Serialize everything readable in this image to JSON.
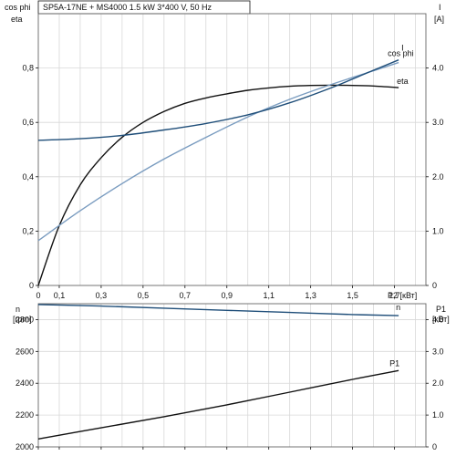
{
  "title": "SP5A-17NE + MS4000   1.5 kW   3*400 V, 50 Hz",
  "colors": {
    "black": "#111111",
    "dark_blue": "#1f4e79",
    "light_blue": "#7a9cc0",
    "grid": "#d8d8d8",
    "frame": "#666666"
  },
  "chart_data": [
    {
      "type": "line",
      "panel": "top",
      "title": "SP5A-17NE + MS4000   1.5 kW   3*400 V, 50 Hz",
      "left_axis": {
        "label_lines": [
          "cos phi",
          "eta"
        ],
        "ylim": [
          0,
          1.0
        ],
        "ticks": [
          0,
          0.2,
          0.4,
          0.6,
          0.8
        ]
      },
      "right_axis": {
        "label_lines": [
          "I",
          "[A]"
        ],
        "ylim": [
          0,
          5.0
        ],
        "ticks": [
          0,
          1.0,
          2.0,
          3.0,
          4.0
        ]
      },
      "x_axis": {
        "label": "P2 [кВт]",
        "xlim": [
          0,
          1.85
        ],
        "ticks": [
          0,
          0.1,
          0.3,
          0.5,
          0.7,
          0.9,
          1.1,
          1.3,
          1.5,
          1.7
        ],
        "tick_labels": [
          "0",
          "0,1",
          "0,3",
          "0,5",
          "0,7",
          "0,9",
          "1,1",
          "1,3",
          "1,5",
          "1,7"
        ]
      },
      "series": [
        {
          "name": "eta",
          "axis": "left",
          "color": "#111111",
          "x": [
            0,
            0.1,
            0.2,
            0.3,
            0.4,
            0.5,
            0.6,
            0.7,
            0.8,
            0.9,
            1.0,
            1.1,
            1.2,
            1.3,
            1.4,
            1.5,
            1.6,
            1.72
          ],
          "y": [
            0,
            0.22,
            0.37,
            0.47,
            0.545,
            0.6,
            0.64,
            0.67,
            0.69,
            0.705,
            0.718,
            0.727,
            0.733,
            0.736,
            0.737,
            0.736,
            0.734,
            0.728
          ]
        },
        {
          "name": "cos phi",
          "axis": "left",
          "color": "#7a9cc0",
          "x": [
            0,
            0.2,
            0.4,
            0.6,
            0.8,
            1.0,
            1.2,
            1.4,
            1.6,
            1.72
          ],
          "y": [
            0.165,
            0.275,
            0.375,
            0.465,
            0.545,
            0.62,
            0.685,
            0.74,
            0.79,
            0.82
          ]
        },
        {
          "name": "I",
          "axis": "right",
          "color": "#1f4e79",
          "x": [
            0,
            0.2,
            0.4,
            0.6,
            0.8,
            1.0,
            1.2,
            1.4,
            1.6,
            1.72
          ],
          "y": [
            2.67,
            2.7,
            2.76,
            2.86,
            2.98,
            3.14,
            3.36,
            3.64,
            3.96,
            4.15
          ]
        }
      ]
    },
    {
      "type": "line",
      "panel": "bottom",
      "left_axis": {
        "label_lines": [
          "n",
          "[rpm]"
        ],
        "ylim": [
          2000,
          2900
        ],
        "ticks": [
          2000,
          2200,
          2400,
          2600,
          2800
        ]
      },
      "right_axis": {
        "label_lines": [
          "P1",
          "[кВт]"
        ],
        "ylim": [
          0,
          4.5
        ],
        "ticks": [
          0,
          1.0,
          2.0,
          3.0,
          4.0
        ]
      },
      "x_axis": {
        "xlim": [
          0,
          1.85
        ],
        "ticks": [
          0,
          0.1,
          0.3,
          0.5,
          0.7,
          0.9,
          1.1,
          1.3,
          1.5,
          1.7
        ]
      },
      "series": [
        {
          "name": "n",
          "axis": "left",
          "color": "#1f4e79",
          "x": [
            0,
            0.3,
            0.6,
            0.9,
            1.2,
            1.5,
            1.72
          ],
          "y": [
            2895,
            2885,
            2872,
            2858,
            2845,
            2832,
            2825
          ]
        },
        {
          "name": "P1",
          "axis": "right",
          "color": "#111111",
          "x": [
            0,
            0.3,
            0.6,
            0.9,
            1.2,
            1.5,
            1.72
          ],
          "y": [
            0.25,
            0.6,
            0.95,
            1.32,
            1.72,
            2.12,
            2.4
          ]
        }
      ]
    }
  ]
}
